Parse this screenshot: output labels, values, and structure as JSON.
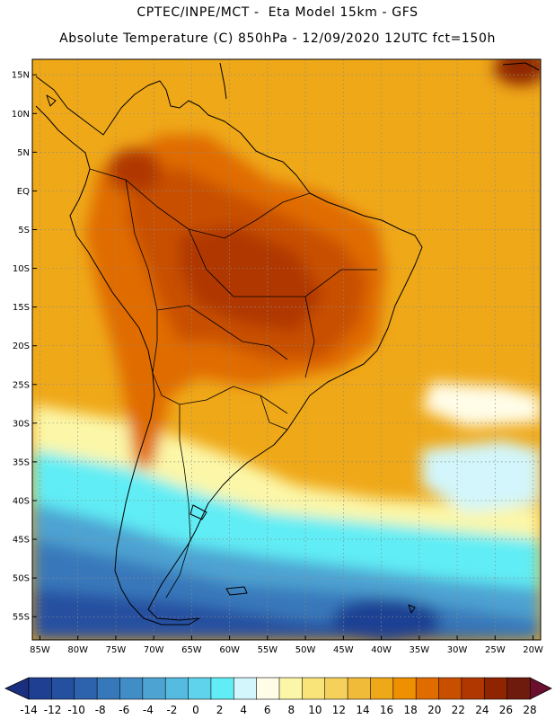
{
  "header": {
    "line1": "CPTEC/INPE/MCT -  Eta Model 15km - GFS",
    "line2": "Absolute Temperature (C) 850hPa - 12/09/2020 12UTC fct=150h"
  },
  "map": {
    "lat_labels": [
      "15N",
      "10N",
      "5N",
      "EQ",
      "5S",
      "10S",
      "15S",
      "20S",
      "25S",
      "30S",
      "35S",
      "40S",
      "45S",
      "50S",
      "55S"
    ],
    "lon_labels": [
      "85W",
      "80W",
      "75W",
      "70W",
      "65W",
      "60W",
      "55W",
      "50W",
      "45W",
      "40W",
      "35W",
      "30W",
      "25W",
      "20W"
    ],
    "lat_values": [
      15,
      10,
      5,
      0,
      -5,
      -10,
      -15,
      -20,
      -25,
      -30,
      -35,
      -40,
      -45,
      -50,
      -55
    ],
    "lon_values": [
      -85,
      -80,
      -75,
      -70,
      -65,
      -60,
      -55,
      -50,
      -45,
      -40,
      -35,
      -30,
      -25,
      -20
    ],
    "lat_range": [
      -58,
      17
    ],
    "lon_range": [
      -86,
      -19
    ]
  },
  "colorbar": {
    "labels": [
      "-14",
      "-12",
      "-10",
      "-8",
      "-6",
      "-4",
      "-2",
      "0",
      "2",
      "4",
      "6",
      "8",
      "10",
      "12",
      "14",
      "16",
      "18",
      "20",
      "22",
      "24",
      "26",
      "28"
    ],
    "colors": [
      "#1f3f93",
      "#2550a0",
      "#2d63ad",
      "#3778ba",
      "#418dc5",
      "#4da3d2",
      "#56bbe0",
      "#5fd3ec",
      "#60edf5",
      "#d2f6fb",
      "#fffde8",
      "#fcf7a8",
      "#f9e47a",
      "#f5d05a",
      "#f1bb3a",
      "#efa818",
      "#ee9000",
      "#e06c00",
      "#c84f00",
      "#b03800",
      "#8e2500",
      "#6e1a0c"
    ],
    "under_color": "#1a2f7f",
    "over_color": "#6b0f2e"
  }
}
